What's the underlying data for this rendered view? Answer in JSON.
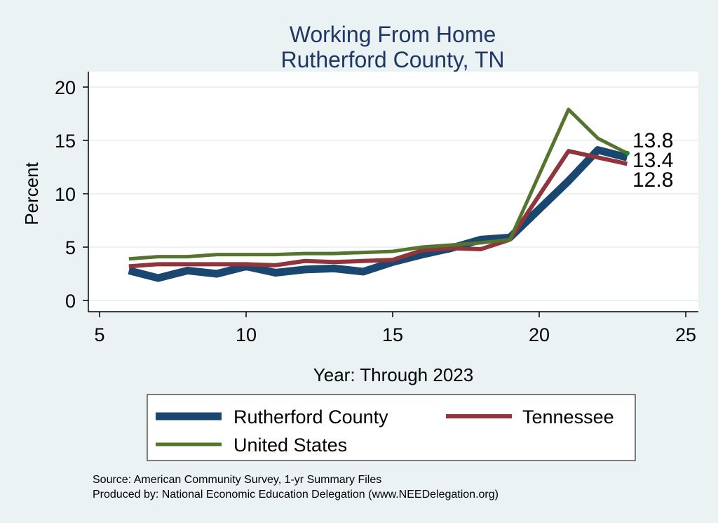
{
  "chart_data": {
    "type": "line",
    "title": "Working From Home",
    "subtitle": "Rutherford County, TN",
    "xlabel": "Year: Through 2023",
    "ylabel": "Percent",
    "xlim": [
      5,
      25
    ],
    "ylim": [
      0,
      20
    ],
    "xticks": [
      "5",
      "10",
      "15",
      "20",
      "25"
    ],
    "yticks": [
      "0",
      "5",
      "10",
      "15",
      "20"
    ],
    "grid": true,
    "legend_position": "bottom",
    "series": [
      {
        "name": "Rutherford County",
        "color": "#1a476f",
        "x": [
          6,
          7,
          8,
          9,
          10,
          11,
          12,
          13,
          14,
          15,
          16,
          17,
          18,
          19,
          21,
          22,
          23
        ],
        "y": [
          2.8,
          2.1,
          2.8,
          2.5,
          3.2,
          2.6,
          2.9,
          3.0,
          2.7,
          3.6,
          4.3,
          4.9,
          5.7,
          5.9,
          11.2,
          14.1,
          13.4
        ],
        "end_label": "13.4"
      },
      {
        "name": "Tennessee",
        "color": "#90353b",
        "x": [
          6,
          7,
          8,
          9,
          10,
          11,
          12,
          13,
          14,
          15,
          16,
          17,
          18,
          19,
          21,
          22,
          23
        ],
        "y": [
          3.2,
          3.4,
          3.4,
          3.4,
          3.4,
          3.3,
          3.7,
          3.6,
          3.7,
          3.8,
          4.7,
          4.9,
          4.8,
          5.7,
          14.0,
          13.4,
          12.8
        ],
        "end_label": "12.8"
      },
      {
        "name": "United States",
        "color": "#55752f",
        "x": [
          6,
          7,
          8,
          9,
          10,
          11,
          12,
          13,
          14,
          15,
          16,
          17,
          18,
          19,
          21,
          22,
          23
        ],
        "y": [
          3.9,
          4.1,
          4.1,
          4.3,
          4.3,
          4.3,
          4.4,
          4.4,
          4.5,
          4.6,
          5.0,
          5.2,
          5.4,
          5.7,
          17.9,
          15.2,
          13.8
        ],
        "end_label": "13.8"
      }
    ],
    "notes": [
      "Source: American Community Survey, 1-yr Summary Files",
      "Produced by: National Economic Education Delegation (www.NEEDelegation.org)"
    ]
  }
}
